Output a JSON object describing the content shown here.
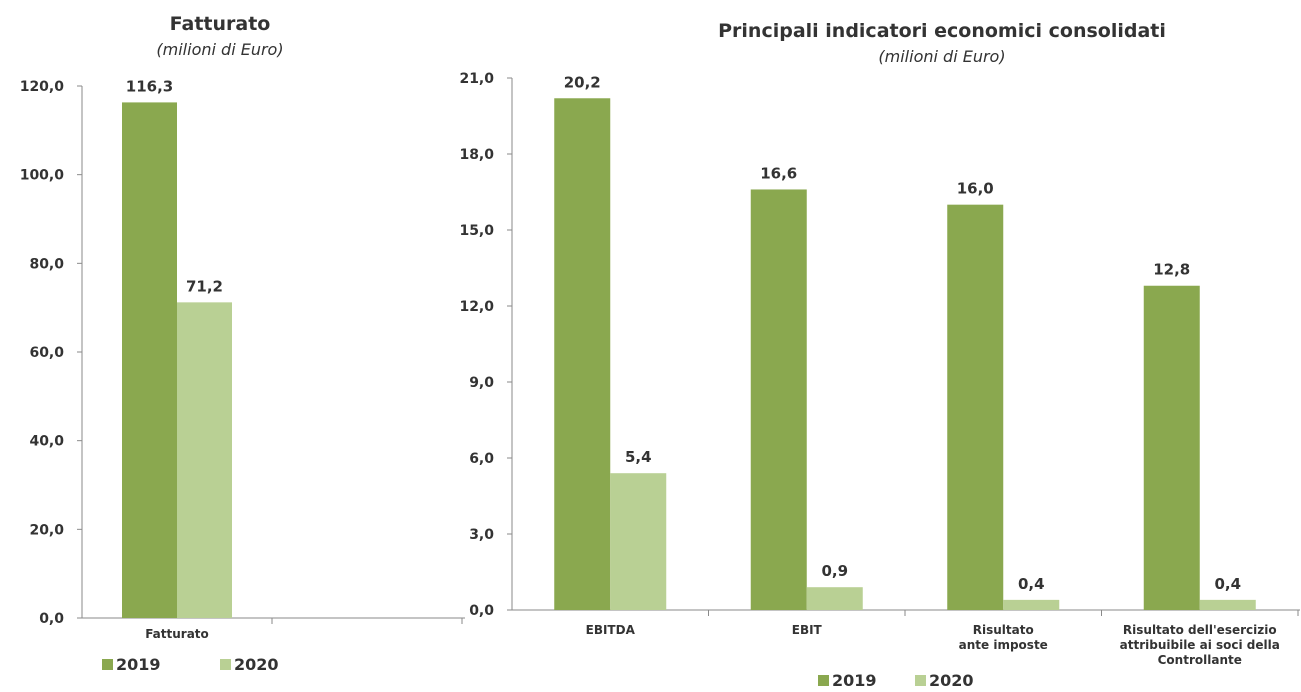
{
  "chart_data": [
    {
      "type": "bar",
      "title": "Fatturato",
      "subtitle": "(milioni di Euro)",
      "categories": [
        "Fatturato"
      ],
      "series": [
        {
          "name": "2019",
          "values": [
            116.3
          ],
          "labels": [
            "116,3"
          ]
        },
        {
          "name": "2020",
          "values": [
            71.2
          ],
          "labels": [
            "71,2"
          ]
        }
      ],
      "ylim": [
        0,
        120
      ],
      "yticks": [
        "0,0",
        "20,0",
        "40,0",
        "60,0",
        "80,0",
        "100,0",
        "120,0"
      ],
      "grid": false,
      "legend_position": "bottom"
    },
    {
      "type": "bar",
      "title": "Principali indicatori economici consolidati",
      "subtitle": "(milioni di Euro)",
      "categories": [
        "EBITDA",
        "EBIT",
        "Risultato\nante imposte",
        "Risultato dell'esercizio\nattribuibile ai soci della\nControllante"
      ],
      "series": [
        {
          "name": "2019",
          "values": [
            20.2,
            16.6,
            16.0,
            12.8
          ],
          "labels": [
            "20,2",
            "16,6",
            "16,0",
            "12,8"
          ]
        },
        {
          "name": "2020",
          "values": [
            5.4,
            0.9,
            0.4,
            0.4
          ],
          "labels": [
            "5,4",
            "0,9",
            "0,4",
            "0,4"
          ]
        }
      ],
      "ylim": [
        0,
        21
      ],
      "yticks": [
        "0,0",
        "3,0",
        "6,0",
        "9,0",
        "12,0",
        "15,0",
        "18,0",
        "21,0"
      ],
      "grid": false,
      "legend_position": "bottom"
    }
  ],
  "colors": {
    "2019": "#8aa84f",
    "2020": "#b9d094",
    "axis": "#8a8a8a",
    "text": "#333333"
  }
}
